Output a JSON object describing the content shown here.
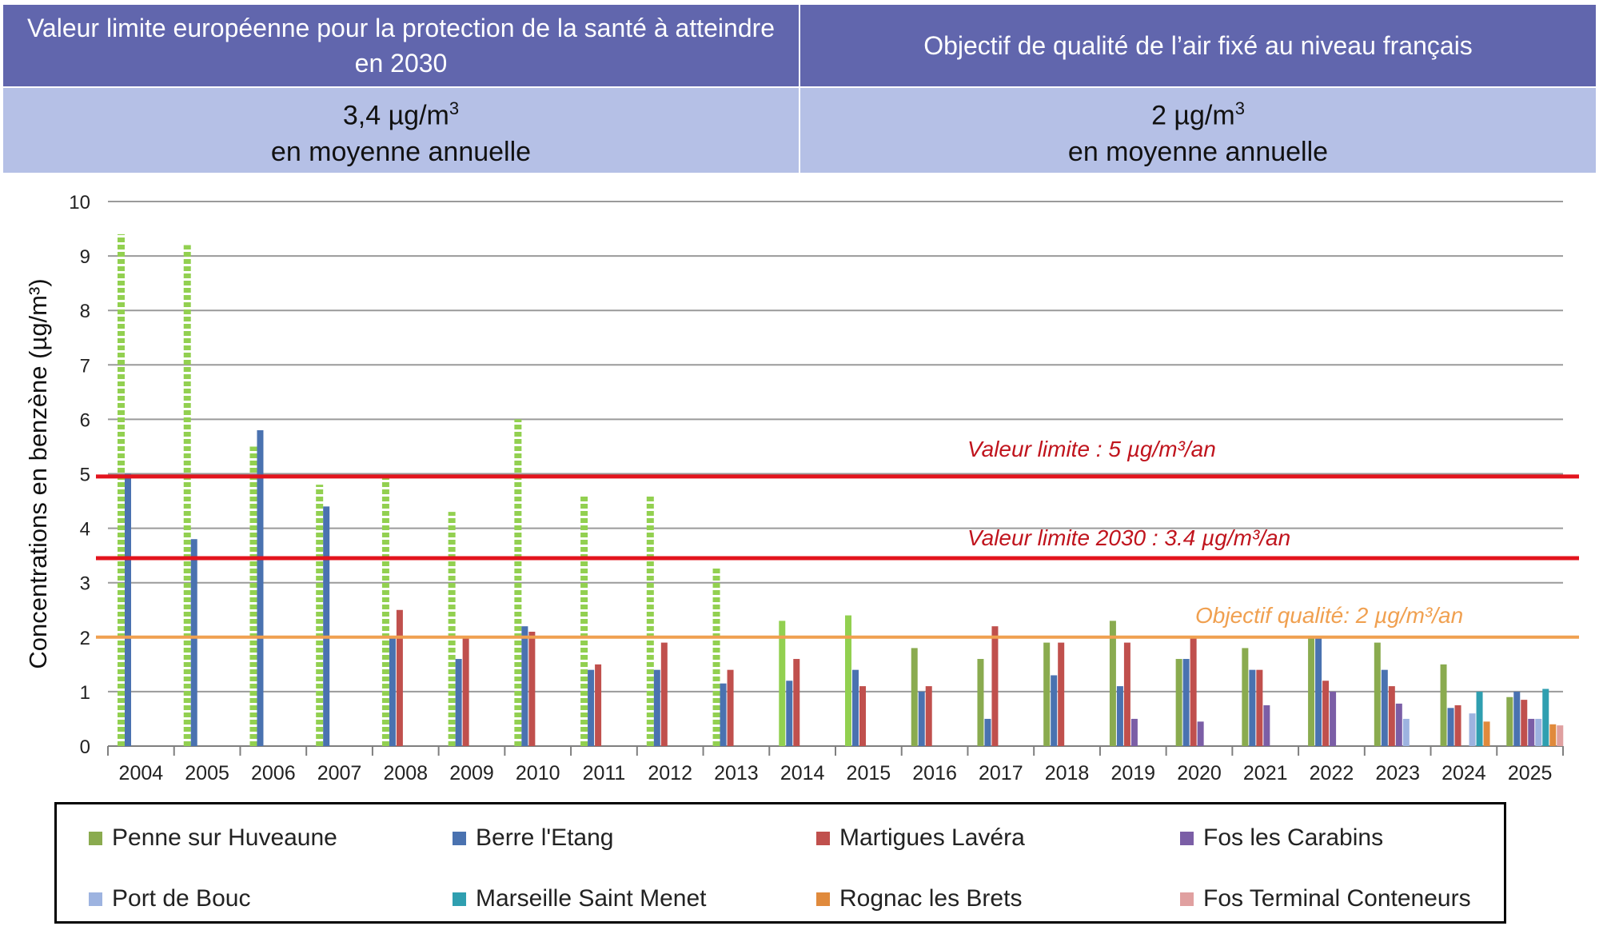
{
  "header": {
    "left_title": "Valeur limite européenne pour la protection de la santé à atteindre en 2030",
    "right_title": "Objectif de qualité de l’air fixé au niveau français",
    "left_value_num": "3,4 µg/m",
    "left_value_sup": "3",
    "left_value_sub": "en moyenne annuelle",
    "right_value_num": "2 µg/m",
    "right_value_sup": "3",
    "right_value_sub": "en moyenne annuelle"
  },
  "chart_data": {
    "type": "bar",
    "ylabel": "Concentrations en benzène (µg/m³)",
    "ylim": [
      0,
      10
    ],
    "yticks": [
      "0",
      "1",
      "2",
      "3",
      "4",
      "5",
      "6",
      "7",
      "8",
      "9",
      "10"
    ],
    "grid": true,
    "categories": [
      "2004",
      "2005",
      "2006",
      "2007",
      "2008",
      "2009",
      "2010",
      "2011",
      "2012",
      "2013",
      "2014",
      "2015",
      "2016",
      "2017",
      "2018",
      "2019",
      "2020",
      "2021",
      "2022",
      "2023",
      "2024",
      "2025"
    ],
    "series": [
      {
        "name": "Penne sur Huveaune",
        "color": "#8aab4f",
        "values": [
          9.4,
          9.2,
          5.5,
          4.8,
          5.0,
          4.3,
          6.0,
          4.6,
          4.6,
          3.3,
          2.3,
          2.4,
          1.8,
          1.6,
          1.9,
          2.3,
          1.6,
          1.8,
          2.0,
          1.9,
          1.5,
          0.9
        ],
        "dashed_until_index": 9,
        "dashed_color": "#92d050",
        "solid_light_indices": [
          10,
          11
        ],
        "light_color": "#92d050"
      },
      {
        "name": "Berre l'Etang",
        "color": "#4a72b0",
        "values": [
          5.0,
          3.8,
          5.8,
          4.4,
          2.0,
          1.6,
          2.2,
          1.4,
          1.4,
          1.15,
          1.2,
          1.4,
          1.0,
          0.5,
          1.3,
          1.1,
          1.6,
          1.4,
          2.0,
          1.4,
          0.7,
          1.0
        ]
      },
      {
        "name": "Martigues Lavéra",
        "color": "#c0504d",
        "values": [
          null,
          null,
          null,
          null,
          2.5,
          2.0,
          2.1,
          1.5,
          1.9,
          1.4,
          1.6,
          1.1,
          1.1,
          2.2,
          1.9,
          1.9,
          2.0,
          1.4,
          1.2,
          1.1,
          0.75,
          0.85
        ]
      },
      {
        "name": "Fos les Carabins",
        "color": "#7b5ea6",
        "values": [
          null,
          null,
          null,
          null,
          null,
          null,
          null,
          null,
          null,
          null,
          null,
          null,
          null,
          null,
          null,
          0.5,
          0.45,
          0.75,
          1.0,
          0.78,
          null,
          0.5
        ]
      },
      {
        "name": "Port de Bouc",
        "color": "#9db3e0",
        "values": [
          null,
          null,
          null,
          null,
          null,
          null,
          null,
          null,
          null,
          null,
          null,
          null,
          null,
          null,
          null,
          null,
          null,
          null,
          null,
          0.5,
          0.6,
          0.5
        ]
      },
      {
        "name": "Marseille Saint Menet",
        "color": "#2f9fb0",
        "values": [
          null,
          null,
          null,
          null,
          null,
          null,
          null,
          null,
          null,
          null,
          null,
          null,
          null,
          null,
          null,
          null,
          null,
          null,
          null,
          null,
          1.0,
          1.05
        ]
      },
      {
        "name": "Rognac les Brets",
        "color": "#e08a3c",
        "values": [
          null,
          null,
          null,
          null,
          null,
          null,
          null,
          null,
          null,
          null,
          null,
          null,
          null,
          null,
          null,
          null,
          null,
          null,
          null,
          null,
          0.45,
          0.4
        ]
      },
      {
        "name": "Fos Terminal Conteneurs",
        "color": "#e0a0a0",
        "values": [
          null,
          null,
          null,
          null,
          null,
          null,
          null,
          null,
          null,
          null,
          null,
          null,
          null,
          null,
          null,
          null,
          null,
          null,
          null,
          null,
          null,
          0.38
        ]
      }
    ],
    "reference_lines": [
      {
        "label": "Valeur limite : 5 µg/m³/an",
        "y": 4.95,
        "color": "#e3141d"
      },
      {
        "label": "Valeur limite 2030 : 3.4 µg/m³/an",
        "y": 3.45,
        "color": "#e3141d"
      },
      {
        "label": "Objectif qualité: 2 µg/m³/an",
        "y": 2.0,
        "color": "#f0a050"
      }
    ]
  }
}
